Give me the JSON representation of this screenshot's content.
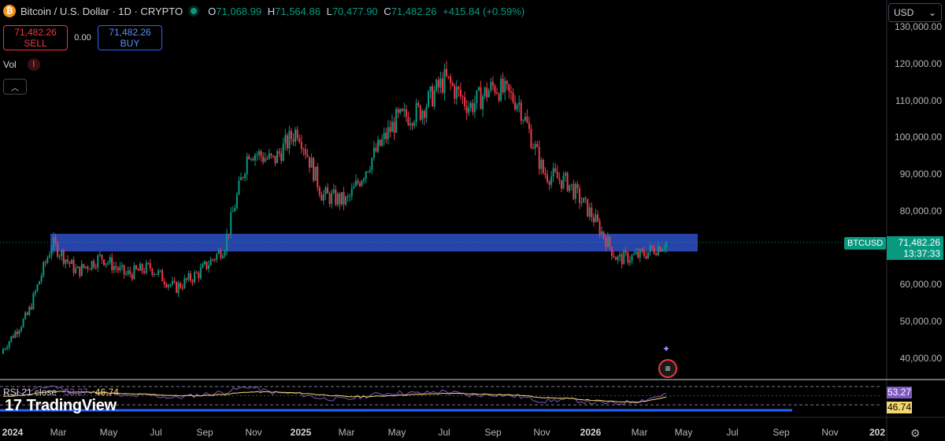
{
  "header": {
    "coin_symbol": "₿",
    "title": "Bitcoin / U.S. Dollar · 1D · CRYPTO",
    "ohlc": {
      "o_label": "O",
      "o": "71,068.99",
      "h_label": "H",
      "h": "71,564.86",
      "l_label": "L",
      "l": "70,477.90",
      "c_label": "C",
      "c": "71,482.26",
      "change": "+415.84 (+0.59%)"
    }
  },
  "currency_select": {
    "value": "USD",
    "icon": "chevron-down-icon"
  },
  "trade": {
    "sell_price": "71,482.26",
    "sell_label": "SELL",
    "spread": "0.00",
    "buy_price": "71,482.26",
    "buy_label": "BUY"
  },
  "volume": {
    "label": "Vol",
    "warning": "!"
  },
  "price_axis": [
    "130,000.00",
    "120,000.00",
    "110,000.00",
    "100,000.00",
    "90,000.00",
    "80,000.00",
    "60,000.00",
    "50,000.00",
    "40,000.00"
  ],
  "last_price": {
    "symbol": "BTCUSD",
    "price": "71,482.26",
    "countdown": "13:37:33"
  },
  "time_axis": [
    "2024",
    "Mar",
    "May",
    "Jul",
    "Sep",
    "Nov",
    "2025",
    "Mar",
    "May",
    "Jul",
    "Sep",
    "Nov",
    "2026",
    "Mar",
    "May",
    "Jul",
    "Sep",
    "Nov",
    "202"
  ],
  "rsi": {
    "label": "RSI 21 close",
    "value": "53.27",
    "ma_value": "46.74"
  },
  "brand": {
    "name": "TradingView",
    "logo": "17"
  },
  "colors": {
    "up": "#089981",
    "down": "#f23645",
    "zone": "#2f4fc8",
    "rsi": "#7e57c2",
    "rsi_ma": "#f5d76e"
  },
  "chart_data": {
    "type": "candlestick",
    "symbol": "BTCUSD",
    "x": [
      "2024-01",
      "2024-02",
      "2024-03",
      "2024-04",
      "2024-05",
      "2024-06",
      "2024-07",
      "2024-08",
      "2024-09",
      "2024-10",
      "2024-11",
      "2024-12",
      "2025-01",
      "2025-02",
      "2025-03",
      "2025-04",
      "2025-05",
      "2025-06",
      "2025-07",
      "2025-08",
      "2025-09",
      "2025-10",
      "2025-11",
      "2025-12",
      "2026-01",
      "2026-02",
      "2026-03",
      "2026-04"
    ],
    "close": [
      42500,
      51800,
      71300,
      63500,
      67500,
      62700,
      64700,
      59000,
      63300,
      70200,
      96500,
      93500,
      102400,
      84300,
      82500,
      94200,
      104600,
      107200,
      115800,
      108300,
      114000,
      109500,
      90400,
      87600,
      78600,
      66900,
      68000,
      71482
    ],
    "ylim": [
      36000,
      133000
    ],
    "zone": {
      "low": 69000,
      "high": 73800
    },
    "rsi_series": [
      50,
      60,
      72,
      55,
      57,
      48,
      51,
      45,
      52,
      58,
      70,
      56,
      54,
      44,
      42,
      52,
      57,
      55,
      60,
      50,
      53,
      48,
      38,
      42,
      35,
      33,
      40,
      53.27
    ],
    "rsi_ma": [
      48,
      52,
      60,
      58,
      57,
      54,
      53,
      50,
      50,
      53,
      58,
      58,
      56,
      52,
      48,
      48,
      51,
      53,
      55,
      54,
      53,
      51,
      46,
      44,
      40,
      37,
      37,
      46.74
    ]
  }
}
